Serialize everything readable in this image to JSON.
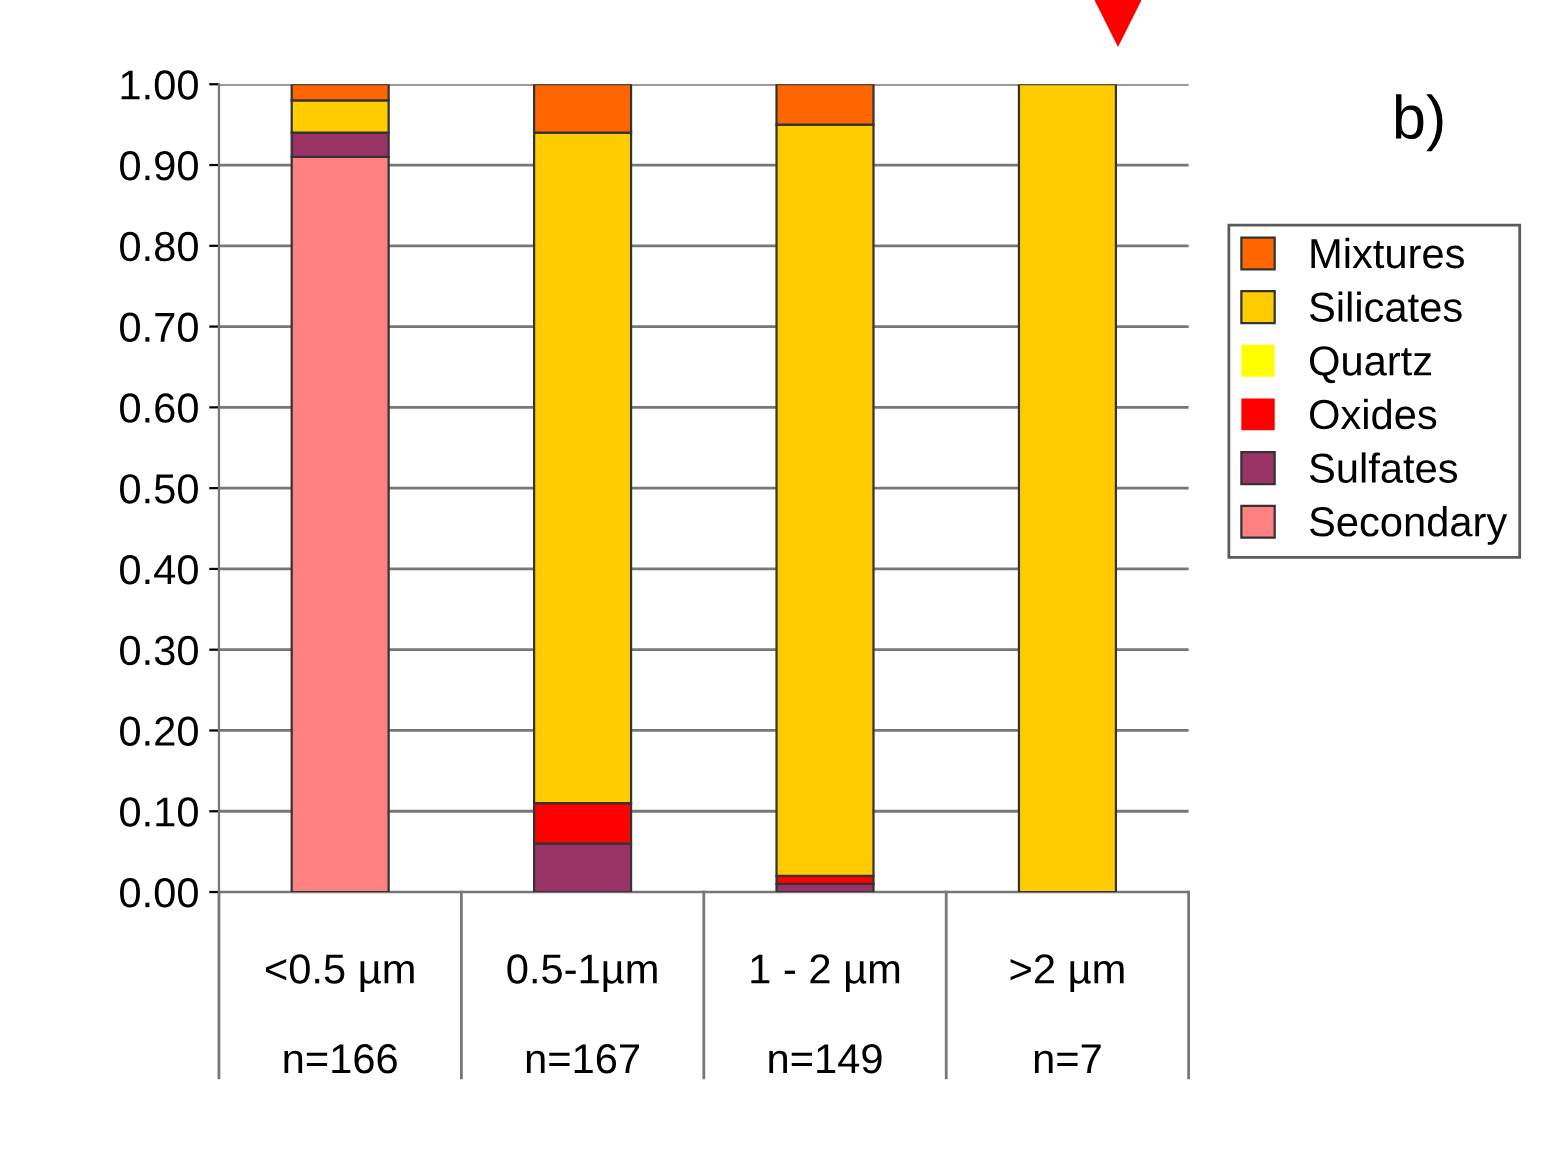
{
  "chart_data": {
    "type": "bar",
    "stacked": true,
    "categories": [
      "<0.5 µm\n\nn=166",
      "0.5-1µm\n\nn=167",
      "1 - 2 µm\n\nn=149",
      ">2 µm\n\nn=7"
    ],
    "series": [
      {
        "name": "Secondary",
        "color": "#ff8080",
        "values": [
          0.91,
          0,
          0,
          0
        ]
      },
      {
        "name": "Sulfates",
        "color": "#993366",
        "values": [
          0.03,
          0.06,
          0.01,
          0
        ]
      },
      {
        "name": "Oxides",
        "color": "#ff0000",
        "values": [
          0,
          0.05,
          0.01,
          0
        ]
      },
      {
        "name": "Quartz",
        "color": "#ffff00",
        "values": [
          0,
          0,
          0,
          0
        ]
      },
      {
        "name": "Silicates",
        "color": "#ffcc00",
        "values": [
          0.04,
          0.83,
          0.93,
          1.0
        ]
      },
      {
        "name": "Mixtures",
        "color": "#ff6600",
        "values": [
          0.02,
          0.06,
          0.05,
          0
        ]
      }
    ],
    "ylim": [
      0,
      1.0
    ],
    "yticks": [
      {
        "value": 0,
        "label": "0.00"
      },
      {
        "value": 0.1,
        "label": "0.10"
      },
      {
        "value": 0.2,
        "label": "0.20"
      },
      {
        "value": 0.3,
        "label": "0.30"
      },
      {
        "value": 0.4,
        "label": "0.40"
      },
      {
        "value": 0.5,
        "label": "0.50"
      },
      {
        "value": 0.6,
        "label": "0.60"
      },
      {
        "value": 0.7,
        "label": "0.70"
      },
      {
        "value": 0.8,
        "label": "0.80"
      },
      {
        "value": 0.9,
        "label": "0.90"
      },
      {
        "value": 1.0,
        "label": "1.00"
      }
    ],
    "grid": "y",
    "legend": "right",
    "annotations": [
      "b)"
    ]
  }
}
